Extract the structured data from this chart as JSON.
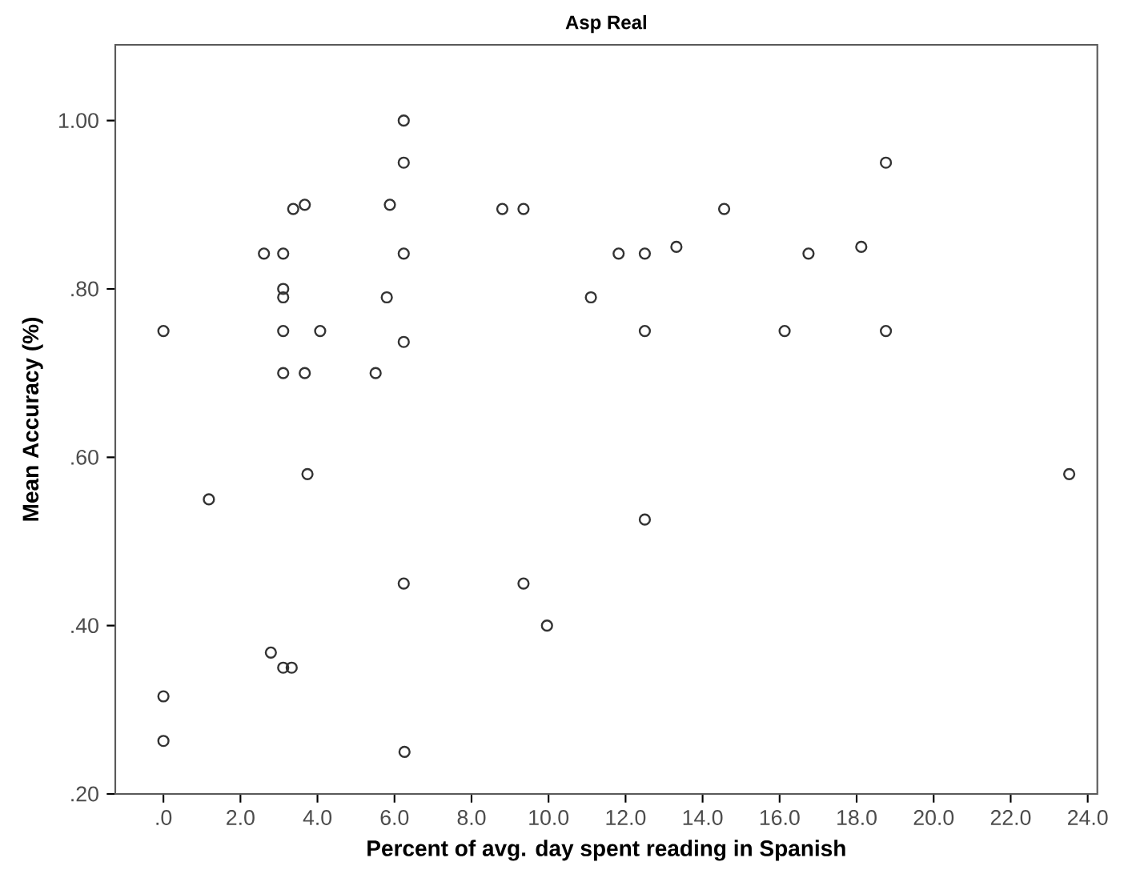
{
  "chart_data": {
    "type": "scatter",
    "title": "Asp Real",
    "xlabel": "Percent of avg. day spent reading in Spanish",
    "ylabel": "Mean Accuracy (%)",
    "marker": "circle",
    "grid": false,
    "xlim": [
      -1.25,
      24.25
    ],
    "ylim": [
      0.2,
      1.09
    ],
    "xticks": [
      {
        "value": 0,
        "label": ".0"
      },
      {
        "value": 2,
        "label": "2.0"
      },
      {
        "value": 4,
        "label": "4.0"
      },
      {
        "value": 6,
        "label": "6.0"
      },
      {
        "value": 8,
        "label": "8.0"
      },
      {
        "value": 10,
        "label": "10.0"
      },
      {
        "value": 12,
        "label": "12.0"
      },
      {
        "value": 14,
        "label": "14.0"
      },
      {
        "value": 16,
        "label": "16.0"
      },
      {
        "value": 18,
        "label": "18.0"
      },
      {
        "value": 20,
        "label": "20.0"
      },
      {
        "value": 22,
        "label": "22.0"
      },
      {
        "value": 24,
        "label": "24.0"
      }
    ],
    "yticks": [
      {
        "value": 0.2,
        "label": ".20"
      },
      {
        "value": 0.4,
        "label": ".40"
      },
      {
        "value": 0.6,
        "label": ".60"
      },
      {
        "value": 0.8,
        "label": ".80"
      },
      {
        "value": 1.0,
        "label": "1.00"
      }
    ],
    "series": [
      {
        "color": "#333333",
        "x": [
          6.24,
          6.24,
          3.37,
          3.67,
          5.88,
          8.8,
          9.35,
          2.61,
          3.11,
          6.24,
          3.11,
          3.11,
          5.8,
          0,
          3.11,
          4.07,
          6.24,
          3.11,
          3.67,
          5.51,
          18.76,
          14.56,
          11.82,
          12.5,
          13.32,
          16.75,
          18.12,
          11.1,
          12.5,
          16.13,
          18.76,
          3.74,
          1.18,
          6.24,
          9.35,
          9.96,
          2.79,
          3.11,
          3.33,
          0,
          0,
          6.26,
          23.52,
          12.5
        ],
        "values": [
          1.0,
          0.95,
          0.895,
          0.9,
          0.9,
          0.895,
          0.895,
          0.842,
          0.842,
          0.842,
          0.8,
          0.79,
          0.79,
          0.75,
          0.75,
          0.75,
          0.737,
          0.7,
          0.7,
          0.7,
          0.95,
          0.895,
          0.842,
          0.842,
          0.85,
          0.842,
          0.85,
          0.79,
          0.75,
          0.75,
          0.75,
          0.58,
          0.55,
          0.45,
          0.45,
          0.4,
          0.368,
          0.35,
          0.35,
          0.316,
          0.263,
          0.25,
          0.58,
          0.526
        ]
      }
    ]
  }
}
